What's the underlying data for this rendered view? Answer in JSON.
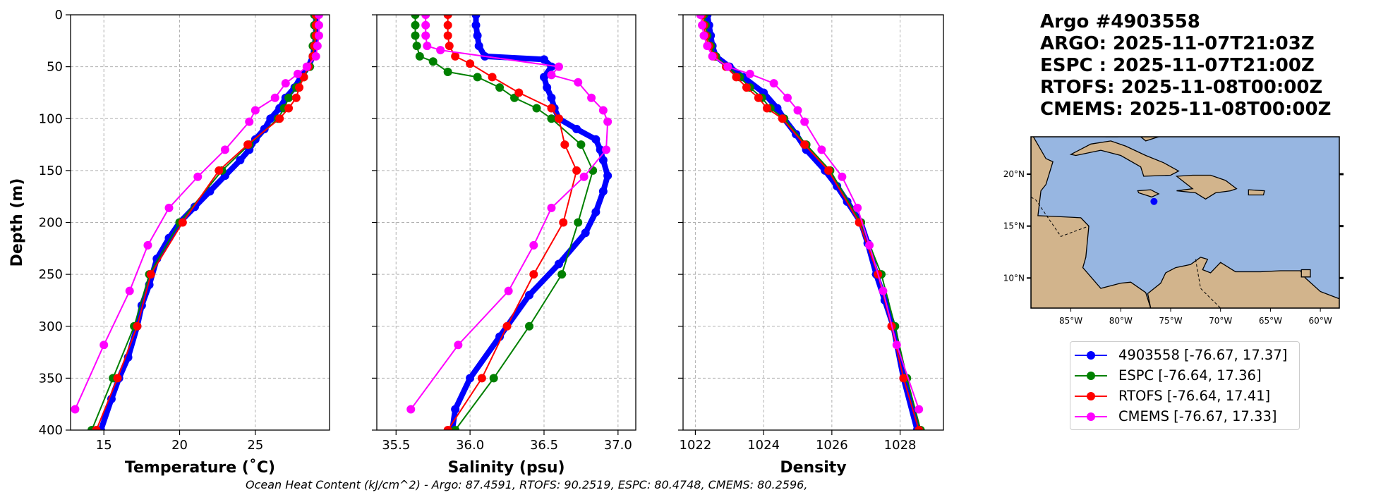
{
  "title": {
    "lines": [
      "Argo #4903558",
      "ARGO: 2025-11-07T21:03Z",
      "ESPC : 2025-11-07T21:00Z",
      "RTOFS: 2025-11-08T00:00Z",
      "CMEMS: 2025-11-08T00:00Z"
    ]
  },
  "note": "Ocean Heat Content (kJ/cm^2) - Argo: 87.4591,  RTOFS: 90.2519,  ESPC: 80.4748,  CMEMS: 80.2596,",
  "legend": [
    {
      "label": "4903558 [-76.67, 17.37]",
      "color": "#0000ff"
    },
    {
      "label": "ESPC [-76.64, 17.36]",
      "color": "#008000"
    },
    {
      "label": "RTOFS [-76.64, 17.41]",
      "color": "#ff0000"
    },
    {
      "label": "CMEMS [-76.67, 17.33]",
      "color": "#ff00ff"
    }
  ],
  "map": {
    "lon_ticks": [
      "85°W",
      "80°W",
      "75°W",
      "70°W",
      "65°W",
      "60°W"
    ],
    "lat_ticks": [
      "20°N",
      "15°N",
      "10°N"
    ],
    "lon_tick_values": [
      -85,
      -80,
      -75,
      -70,
      -65,
      -60
    ],
    "lat_tick_values": [
      20,
      15,
      10
    ],
    "extent": {
      "lon": [
        -89,
        -58.1
      ],
      "lat": [
        7.1,
        23.6
      ]
    },
    "float_position": {
      "lon": -76.67,
      "lat": 17.37
    },
    "ocean_color": "#97b6e1",
    "land_color": "#d2b48c"
  },
  "chart_data": [
    {
      "type": "line",
      "xlabel": "Temperature (˚C)",
      "ylabel": "Depth (m)",
      "xlim": [
        12.8,
        29.9
      ],
      "ylim": [
        400,
        0
      ],
      "xticks": [
        15,
        20,
        25
      ],
      "xtick_labels": [
        "15",
        "20",
        "25"
      ],
      "yticks": [
        0,
        50,
        100,
        150,
        200,
        250,
        300,
        350,
        400
      ],
      "ytick_labels": [
        "0",
        "50",
        "100",
        "150",
        "200",
        "250",
        "300",
        "350",
        "400"
      ],
      "grid": true,
      "series": [
        {
          "name": "4903558",
          "depth": [
            0,
            10,
            20,
            30,
            40,
            50,
            60,
            70,
            80,
            90,
            100,
            110,
            120,
            130,
            140,
            155,
            170,
            185,
            200,
            215,
            235,
            260,
            280,
            300,
            330,
            350,
            370,
            400
          ],
          "values": [
            29.0,
            29.0,
            29.0,
            28.9,
            28.8,
            28.5,
            28.0,
            27.6,
            27.0,
            26.6,
            26.0,
            25.6,
            25.0,
            24.6,
            24.0,
            23.0,
            22.0,
            21.0,
            20.0,
            19.3,
            18.5,
            18.0,
            17.5,
            17.2,
            16.6,
            16.0,
            15.5,
            14.8
          ]
        },
        {
          "name": "ESPC",
          "depth": [
            0,
            10,
            20,
            30,
            40,
            50,
            60,
            70,
            80,
            90,
            100,
            125,
            150,
            200,
            250,
            300,
            350,
            400
          ],
          "values": [
            28.9,
            28.9,
            28.9,
            28.8,
            28.8,
            28.6,
            28.2,
            27.7,
            27.2,
            26.9,
            26.5,
            24.6,
            22.8,
            20.0,
            18.0,
            17.0,
            15.6,
            14.2
          ]
        },
        {
          "name": "RTOFS",
          "depth": [
            0,
            10,
            20,
            30,
            40,
            50,
            60,
            70,
            80,
            90,
            100,
            125,
            150,
            200,
            250,
            300,
            350,
            400
          ],
          "values": [
            29.0,
            29.0,
            29.0,
            28.9,
            28.8,
            28.5,
            28.2,
            27.9,
            27.7,
            27.2,
            26.6,
            24.5,
            22.6,
            20.2,
            18.1,
            17.2,
            15.9,
            14.5
          ]
        },
        {
          "name": "CMEMS",
          "depth": [
            0,
            10,
            20,
            30,
            40,
            50,
            57,
            66,
            80,
            92,
            103,
            130,
            156,
            186,
            222,
            266,
            318,
            380
          ],
          "values": [
            29.2,
            29.2,
            29.2,
            29.1,
            29.0,
            28.4,
            27.8,
            27.0,
            26.3,
            25.0,
            24.6,
            23.0,
            21.2,
            19.3,
            17.9,
            16.7,
            15.0,
            13.1
          ]
        }
      ]
    },
    {
      "type": "line",
      "xlabel": "Salinity (psu)",
      "xlim": [
        35.37,
        37.12
      ],
      "ylim": [
        400,
        0
      ],
      "xticks": [
        35.5,
        36.0,
        36.5,
        37.0
      ],
      "xtick_labels": [
        "35.5",
        "36.0",
        "36.5",
        "37.0"
      ],
      "yticks": [
        0,
        50,
        100,
        150,
        200,
        250,
        300,
        350,
        400
      ],
      "grid": true,
      "series": [
        {
          "name": "4903558",
          "depth": [
            0,
            10,
            20,
            30,
            40,
            43,
            50,
            60,
            70,
            80,
            90,
            100,
            110,
            120,
            130,
            140,
            155,
            170,
            190,
            210,
            240,
            270,
            310,
            350,
            380,
            400
          ],
          "values": [
            36.04,
            36.04,
            36.05,
            36.06,
            36.1,
            36.5,
            36.55,
            36.5,
            36.52,
            36.55,
            36.57,
            36.6,
            36.72,
            36.85,
            36.88,
            36.9,
            36.93,
            36.9,
            36.85,
            36.78,
            36.6,
            36.4,
            36.2,
            36.0,
            35.9,
            35.88
          ]
        },
        {
          "name": "ESPC",
          "depth": [
            0,
            10,
            20,
            30,
            40,
            45,
            55,
            60,
            70,
            80,
            90,
            100,
            125,
            150,
            200,
            250,
            300,
            350,
            400
          ],
          "values": [
            35.63,
            35.63,
            35.63,
            35.64,
            35.66,
            35.75,
            35.85,
            36.05,
            36.2,
            36.3,
            36.45,
            36.55,
            36.75,
            36.83,
            36.73,
            36.62,
            36.4,
            36.16,
            35.9
          ]
        },
        {
          "name": "RTOFS",
          "depth": [
            0,
            10,
            20,
            30,
            40,
            47,
            60,
            75,
            90,
            100,
            125,
            150,
            200,
            250,
            300,
            350,
            400
          ],
          "values": [
            35.85,
            35.85,
            35.85,
            35.86,
            35.9,
            36.0,
            36.15,
            36.33,
            36.55,
            36.6,
            36.64,
            36.72,
            36.63,
            36.43,
            36.25,
            36.08,
            35.85
          ]
        },
        {
          "name": "CMEMS",
          "depth": [
            0,
            10,
            20,
            30,
            34,
            50,
            58,
            65,
            80,
            92,
            103,
            130,
            156,
            186,
            222,
            266,
            318,
            380
          ],
          "values": [
            35.7,
            35.7,
            35.7,
            35.71,
            35.8,
            36.6,
            36.55,
            36.73,
            36.82,
            36.9,
            36.93,
            36.92,
            36.77,
            36.55,
            36.43,
            36.26,
            35.92,
            35.6
          ]
        }
      ]
    },
    {
      "type": "line",
      "xlabel": "Density",
      "xlim": [
        1021.64,
        1029.27
      ],
      "ylim": [
        400,
        0
      ],
      "xticks": [
        1022,
        1024,
        1026,
        1028
      ],
      "xtick_labels": [
        "1022",
        "1024",
        "1026",
        "1028"
      ],
      "yticks": [
        0,
        50,
        100,
        150,
        200,
        250,
        300,
        350,
        400
      ],
      "grid": true,
      "series": [
        {
          "name": "4903558",
          "depth": [
            0,
            10,
            20,
            30,
            40,
            50,
            60,
            75,
            90,
            100,
            115,
            130,
            150,
            165,
            180,
            200,
            220,
            250,
            275,
            300,
            350,
            400
          ],
          "values": [
            1022.35,
            1022.4,
            1022.45,
            1022.5,
            1022.6,
            1023.0,
            1023.4,
            1024.0,
            1024.4,
            1024.6,
            1024.95,
            1025.25,
            1025.8,
            1026.15,
            1026.45,
            1026.85,
            1027.05,
            1027.3,
            1027.55,
            1027.8,
            1028.1,
            1028.5
          ]
        },
        {
          "name": "ESPC",
          "depth": [
            0,
            10,
            20,
            30,
            40,
            50,
            60,
            70,
            80,
            90,
            100,
            125,
            150,
            200,
            250,
            300,
            350,
            400
          ],
          "values": [
            1022.25,
            1022.3,
            1022.35,
            1022.45,
            1022.6,
            1022.95,
            1023.3,
            1023.6,
            1023.95,
            1024.2,
            1024.6,
            1025.25,
            1025.95,
            1026.85,
            1027.45,
            1027.85,
            1028.2,
            1028.6
          ]
        },
        {
          "name": "RTOFS",
          "depth": [
            0,
            10,
            20,
            30,
            40,
            50,
            60,
            70,
            80,
            90,
            100,
            125,
            150,
            200,
            250,
            300,
            350,
            400
          ],
          "values": [
            1022.2,
            1022.25,
            1022.3,
            1022.4,
            1022.55,
            1022.9,
            1023.2,
            1023.5,
            1023.85,
            1024.1,
            1024.55,
            1025.2,
            1025.9,
            1026.8,
            1027.35,
            1027.75,
            1028.1,
            1028.55
          ]
        },
        {
          "name": "CMEMS",
          "depth": [
            0,
            10,
            20,
            30,
            40,
            50,
            57,
            66,
            80,
            92,
            103,
            130,
            156,
            186,
            222,
            266,
            318,
            380
          ],
          "values": [
            1022.15,
            1022.2,
            1022.25,
            1022.35,
            1022.5,
            1022.95,
            1023.6,
            1024.3,
            1024.7,
            1025.0,
            1025.2,
            1025.7,
            1026.3,
            1026.75,
            1027.1,
            1027.5,
            1027.9,
            1028.55
          ]
        }
      ]
    }
  ]
}
